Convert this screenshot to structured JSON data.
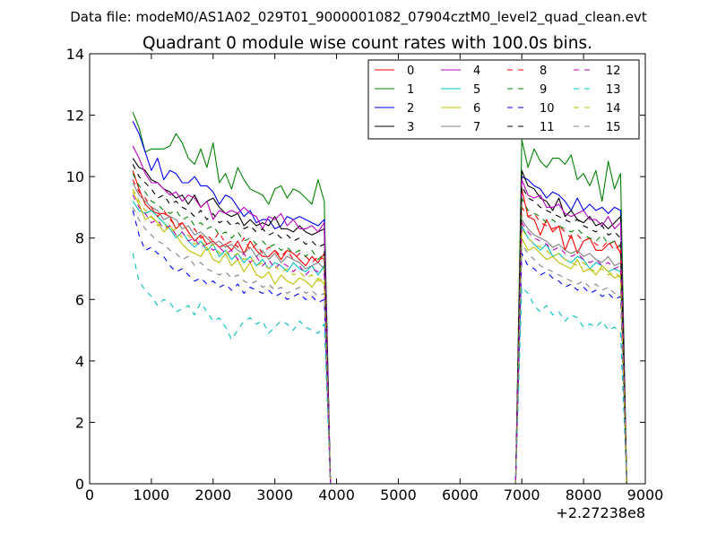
{
  "chart_data": {
    "type": "line",
    "suptitle": "Data file: modeM0/AS1A02_029T01_9000001082_07904cztM0_level2_quad_clean.evt",
    "title": "Quadrant 0 module wise count rates with 100.0s bins.",
    "xlabel": "",
    "ylabel": "",
    "x_offset_label": "+2.27238e8",
    "xlim": [
      0,
      9000
    ],
    "ylim": [
      0,
      14
    ],
    "x_ticks": [
      0,
      1000,
      2000,
      3000,
      4000,
      5000,
      6000,
      7000,
      8000,
      9000
    ],
    "x_tick_labels": [
      "0",
      "1000",
      "2000",
      "3000",
      "4000",
      "5000",
      "6000",
      "7000",
      "8000",
      "9000"
    ],
    "y_ticks": [
      0,
      2,
      4,
      6,
      8,
      10,
      12,
      14
    ],
    "y_tick_labels": [
      "0",
      "2",
      "4",
      "6",
      "8",
      "10",
      "12",
      "14"
    ],
    "legend_location": "upper right",
    "x": [
      700,
      800,
      900,
      1000,
      1100,
      1200,
      1300,
      1400,
      1500,
      1600,
      1700,
      1800,
      1900,
      2000,
      2100,
      2200,
      2300,
      2400,
      2500,
      2600,
      2700,
      2800,
      2900,
      3000,
      3100,
      3200,
      3300,
      3400,
      3500,
      3600,
      3700,
      3800,
      3900,
      4000,
      6800,
      6900,
      7000,
      7100,
      7200,
      7300,
      7400,
      7500,
      7600,
      7700,
      7800,
      7900,
      8000,
      8100,
      8200,
      8300,
      8400,
      8500,
      8600,
      8700
    ],
    "series": [
      {
        "name": "0",
        "color": "#ff0000",
        "dash": "solid",
        "values": [
          10.2,
          9.6,
          9.1,
          8.9,
          8.8,
          8.8,
          8.7,
          8.3,
          8.5,
          8.2,
          7.9,
          8.1,
          7.8,
          7.9,
          7.7,
          7.8,
          7.6,
          7.9,
          7.5,
          7.9,
          7.6,
          7.4,
          7.4,
          7.6,
          7.3,
          7.6,
          7.5,
          7.3,
          7.1,
          7.4,
          7.2,
          7.5,
          0.0,
          0.0,
          0.0,
          0.0,
          9.6,
          8.7,
          8.6,
          8.1,
          8.6,
          8.2,
          8.4,
          7.6,
          8.1,
          7.5,
          7.9,
          8.0,
          7.6,
          7.6,
          7.8,
          7.9,
          7.5,
          0.0
        ]
      },
      {
        "name": "1",
        "color": "#008000",
        "dash": "solid",
        "values": [
          12.1,
          11.6,
          10.8,
          10.9,
          10.9,
          10.9,
          11.0,
          11.4,
          11.1,
          10.6,
          10.4,
          10.9,
          10.3,
          11.1,
          9.8,
          10.1,
          9.6,
          10.3,
          9.9,
          9.6,
          9.5,
          9.4,
          9.1,
          9.6,
          9.7,
          9.3,
          9.6,
          9.5,
          9.3,
          9.1,
          9.9,
          9.2,
          0.0,
          0.0,
          0.0,
          0.0,
          11.2,
          10.3,
          10.9,
          10.5,
          10.3,
          10.6,
          10.6,
          10.4,
          10.7,
          9.9,
          10.1,
          9.7,
          10.2,
          9.2,
          10.5,
          9.6,
          10.1,
          0.0
        ]
      },
      {
        "name": "2",
        "color": "#0000ff",
        "dash": "solid",
        "values": [
          11.8,
          11.4,
          10.8,
          10.2,
          10.6,
          9.9,
          10.2,
          10.1,
          9.8,
          9.8,
          10.0,
          9.7,
          9.7,
          9.5,
          9.1,
          9.4,
          9.3,
          9.0,
          8.7,
          8.9,
          8.5,
          8.6,
          8.6,
          8.3,
          8.4,
          8.7,
          8.6,
          8.7,
          8.6,
          8.5,
          8.4,
          8.6,
          0.0,
          0.0,
          0.0,
          0.0,
          10.0,
          9.9,
          9.7,
          9.6,
          9.3,
          9.5,
          9.4,
          9.2,
          8.9,
          9.3,
          8.9,
          9.1,
          8.9,
          9.0,
          8.8,
          9.0,
          8.9,
          0.0
        ]
      },
      {
        "name": "3",
        "color": "#000000",
        "dash": "solid",
        "values": [
          10.6,
          10.3,
          10.2,
          9.9,
          9.8,
          9.6,
          9.5,
          9.3,
          9.4,
          9.1,
          9.4,
          9.0,
          9.2,
          9.3,
          9.0,
          8.8,
          8.7,
          8.8,
          8.4,
          8.6,
          8.4,
          8.5,
          8.4,
          8.7,
          8.3,
          8.3,
          8.2,
          8.4,
          8.2,
          8.1,
          8.2,
          8.3,
          0.0,
          0.0,
          0.0,
          0.0,
          10.2,
          9.7,
          9.6,
          9.3,
          9.2,
          8.9,
          9.3,
          8.7,
          8.9,
          8.6,
          8.5,
          8.7,
          8.4,
          8.5,
          8.3,
          8.5,
          8.7,
          0.0
        ]
      },
      {
        "name": "4",
        "color": "#bf00bf",
        "dash": "solid",
        "values": [
          11.0,
          10.6,
          10.1,
          9.8,
          9.8,
          9.6,
          9.4,
          9.5,
          9.2,
          9.4,
          9.3,
          9.0,
          9.2,
          8.6,
          8.9,
          8.8,
          8.9,
          8.8,
          9.0,
          8.8,
          8.7,
          8.3,
          8.7,
          8.6,
          8.8,
          8.4,
          8.6,
          8.3,
          8.3,
          8.4,
          8.2,
          8.5,
          0.0,
          0.0,
          0.0,
          0.0,
          9.9,
          9.4,
          9.3,
          9.4,
          9.0,
          9.0,
          9.1,
          8.8,
          8.7,
          8.8,
          8.9,
          8.6,
          8.6,
          8.4,
          8.7,
          8.3,
          8.5,
          0.0
        ]
      },
      {
        "name": "5",
        "color": "#00bfbf",
        "dash": "solid",
        "values": [
          9.2,
          8.9,
          8.8,
          8.9,
          8.7,
          8.5,
          8.3,
          8.0,
          8.2,
          7.9,
          7.7,
          7.9,
          7.6,
          7.8,
          7.4,
          7.6,
          7.3,
          7.5,
          7.2,
          7.4,
          7.1,
          7.3,
          7.0,
          7.2,
          7.1,
          6.9,
          7.2,
          7.0,
          6.9,
          7.1,
          6.8,
          7.1,
          0.0,
          0.0,
          0.0,
          0.0,
          8.4,
          8.0,
          7.8,
          7.6,
          7.8,
          7.4,
          7.5,
          7.3,
          7.2,
          7.4,
          7.3,
          7.0,
          7.2,
          7.1,
          6.9,
          7.0,
          6.9,
          0.0
        ]
      },
      {
        "name": "6",
        "color": "#bfbf00",
        "dash": "solid",
        "values": [
          9.5,
          9.1,
          8.6,
          8.7,
          8.5,
          8.2,
          8.4,
          8.1,
          7.8,
          7.6,
          7.5,
          7.4,
          7.7,
          7.3,
          7.2,
          7.5,
          7.1,
          7.3,
          6.9,
          7.2,
          6.8,
          6.7,
          6.9,
          6.5,
          6.8,
          6.6,
          6.5,
          6.7,
          6.6,
          6.4,
          6.7,
          6.5,
          0.0,
          0.0,
          0.0,
          0.0,
          8.0,
          7.6,
          7.7,
          7.5,
          7.3,
          7.4,
          7.2,
          7.1,
          7.0,
          7.3,
          6.9,
          7.0,
          6.8,
          7.1,
          6.9,
          6.7,
          6.8,
          0.0
        ]
      },
      {
        "name": "7",
        "color": "#808080",
        "dash": "solid",
        "values": [
          9.8,
          9.4,
          9.2,
          9.0,
          8.9,
          8.6,
          8.7,
          8.6,
          8.3,
          8.4,
          8.1,
          8.2,
          8.0,
          7.8,
          7.9,
          7.7,
          7.8,
          7.6,
          7.5,
          7.7,
          7.4,
          7.6,
          7.3,
          7.5,
          7.2,
          7.4,
          7.3,
          7.2,
          7.0,
          7.1,
          7.2,
          7.0,
          0.0,
          0.0,
          0.0,
          0.0,
          8.6,
          8.3,
          8.1,
          8.0,
          7.9,
          7.7,
          7.8,
          7.6,
          7.5,
          7.6,
          7.4,
          7.5,
          7.3,
          7.2,
          7.4,
          7.1,
          7.2,
          0.0
        ]
      },
      {
        "name": "8",
        "color": "#ff0000",
        "dash": "dashed",
        "values": [
          9.9,
          9.5,
          9.3,
          9.0,
          8.7,
          8.9,
          8.6,
          8.4,
          8.5,
          8.2,
          8.3,
          8.0,
          8.1,
          7.9,
          8.2,
          7.8,
          7.9,
          7.7,
          8.0,
          7.6,
          7.8,
          7.5,
          7.7,
          7.6,
          7.4,
          7.6,
          7.3,
          7.5,
          7.4,
          7.2,
          7.4,
          7.3,
          0.0,
          0.0,
          0.0,
          0.0,
          9.0,
          8.7,
          8.8,
          8.5,
          8.4,
          8.3,
          8.4,
          8.2,
          8.0,
          8.1,
          7.9,
          8.0,
          7.8,
          7.7,
          7.9,
          7.6,
          7.8,
          0.0
        ]
      },
      {
        "name": "9",
        "color": "#008000",
        "dash": "dashed",
        "values": [
          10.1,
          9.7,
          9.5,
          9.2,
          9.1,
          8.9,
          8.8,
          8.9,
          8.6,
          8.7,
          8.4,
          8.5,
          8.3,
          8.4,
          8.1,
          8.2,
          8.0,
          8.2,
          7.9,
          8.0,
          7.8,
          7.9,
          7.7,
          7.8,
          7.6,
          7.7,
          7.5,
          7.6,
          7.4,
          7.6,
          7.3,
          7.5,
          0.0,
          0.0,
          0.0,
          0.0,
          9.3,
          8.9,
          8.8,
          8.7,
          8.5,
          8.6,
          8.4,
          8.3,
          8.2,
          8.3,
          8.1,
          8.0,
          7.9,
          8.1,
          7.8,
          7.9,
          7.7,
          0.0
        ]
      },
      {
        "name": "10",
        "color": "#0000ff",
        "dash": "dashed",
        "values": [
          8.9,
          8.1,
          7.6,
          7.7,
          7.5,
          7.4,
          7.1,
          6.9,
          7.0,
          6.8,
          6.6,
          6.7,
          6.5,
          6.6,
          6.4,
          6.5,
          6.3,
          6.5,
          6.2,
          6.4,
          6.3,
          6.2,
          6.3,
          6.1,
          6.2,
          6.0,
          6.1,
          6.2,
          6.0,
          6.1,
          5.9,
          6.0,
          0.0,
          0.0,
          0.0,
          0.0,
          7.5,
          7.1,
          7.0,
          6.8,
          6.9,
          6.7,
          6.6,
          6.4,
          6.5,
          6.3,
          6.4,
          6.2,
          6.3,
          6.1,
          6.2,
          6.0,
          6.1,
          0.0
        ]
      },
      {
        "name": "11",
        "color": "#000000",
        "dash": "dashed",
        "values": [
          10.4,
          10.0,
          9.8,
          9.6,
          9.3,
          9.4,
          9.1,
          9.2,
          9.0,
          8.9,
          8.7,
          8.9,
          8.6,
          8.8,
          8.5,
          8.6,
          8.4,
          8.5,
          8.3,
          8.4,
          8.2,
          8.3,
          8.1,
          8.2,
          8.0,
          8.1,
          7.9,
          8.0,
          7.8,
          7.9,
          7.7,
          7.8,
          0.0,
          0.0,
          0.0,
          0.0,
          9.7,
          9.3,
          9.2,
          9.0,
          8.9,
          8.8,
          8.7,
          8.6,
          8.5,
          8.6,
          8.4,
          8.3,
          8.2,
          8.4,
          8.1,
          8.2,
          8.0,
          0.0
        ]
      },
      {
        "name": "12",
        "color": "#bf00bf",
        "dash": "dashed",
        "values": [
          9.4,
          9.0,
          8.8,
          8.5,
          8.6,
          8.3,
          8.4,
          8.1,
          8.2,
          7.9,
          8.0,
          7.7,
          7.8,
          7.6,
          7.7,
          7.5,
          7.6,
          7.3,
          7.5,
          7.2,
          7.4,
          7.1,
          7.3,
          7.0,
          7.2,
          7.1,
          6.9,
          7.1,
          6.8,
          7.0,
          6.9,
          6.8,
          0.0,
          0.0,
          0.0,
          0.0,
          8.5,
          8.2,
          8.0,
          7.9,
          7.8,
          7.6,
          7.7,
          7.5,
          7.4,
          7.5,
          7.3,
          7.2,
          7.3,
          7.1,
          7.2,
          7.0,
          7.1,
          0.0
        ]
      },
      {
        "name": "13",
        "color": "#00bfbf",
        "dash": "dashed",
        "values": [
          7.5,
          6.6,
          6.3,
          6.1,
          5.8,
          6.0,
          5.9,
          5.6,
          5.7,
          5.8,
          5.5,
          5.9,
          5.6,
          5.3,
          5.4,
          5.1,
          4.7,
          5.0,
          5.3,
          5.4,
          5.2,
          5.3,
          4.9,
          5.1,
          5.3,
          5.2,
          5.0,
          5.3,
          5.1,
          5.0,
          4.9,
          5.2,
          0.0,
          0.0,
          0.0,
          0.0,
          6.4,
          6.2,
          5.8,
          5.6,
          5.8,
          5.5,
          5.6,
          5.3,
          5.5,
          5.4,
          5.1,
          5.2,
          5.1,
          5.3,
          5.0,
          5.1,
          4.9,
          0.0
        ]
      },
      {
        "name": "14",
        "color": "#bfbf00",
        "dash": "dashed",
        "values": [
          9.6,
          9.2,
          8.9,
          8.7,
          8.4,
          8.5,
          8.2,
          8.3,
          8.0,
          8.1,
          7.8,
          7.9,
          7.7,
          7.8,
          7.5,
          7.6,
          7.4,
          7.5,
          7.3,
          7.4,
          7.1,
          7.2,
          7.0,
          7.1,
          6.9,
          7.0,
          6.8,
          6.9,
          6.7,
          6.8,
          6.6,
          6.7,
          0.0,
          0.0,
          0.0,
          0.0,
          8.3,
          8.0,
          7.8,
          7.7,
          7.6,
          7.4,
          7.5,
          7.3,
          7.2,
          7.1,
          7.2,
          7.0,
          6.9,
          7.0,
          6.8,
          6.9,
          6.7,
          0.0
        ]
      },
      {
        "name": "15",
        "color": "#808080",
        "dash": "dashed",
        "values": [
          9.0,
          8.6,
          8.3,
          8.1,
          7.9,
          7.8,
          7.6,
          7.5,
          7.3,
          7.4,
          7.1,
          7.2,
          7.0,
          6.9,
          6.8,
          6.9,
          6.7,
          6.8,
          6.6,
          6.5,
          6.6,
          6.4,
          6.5,
          6.3,
          6.4,
          6.2,
          6.3,
          6.4,
          6.2,
          6.3,
          6.1,
          6.2,
          0.0,
          0.0,
          0.0,
          0.0,
          7.8,
          7.5,
          7.3,
          7.1,
          7.0,
          6.9,
          6.8,
          6.7,
          6.6,
          6.5,
          6.6,
          6.4,
          6.5,
          6.3,
          6.4,
          6.2,
          6.3,
          0.0
        ]
      }
    ]
  }
}
